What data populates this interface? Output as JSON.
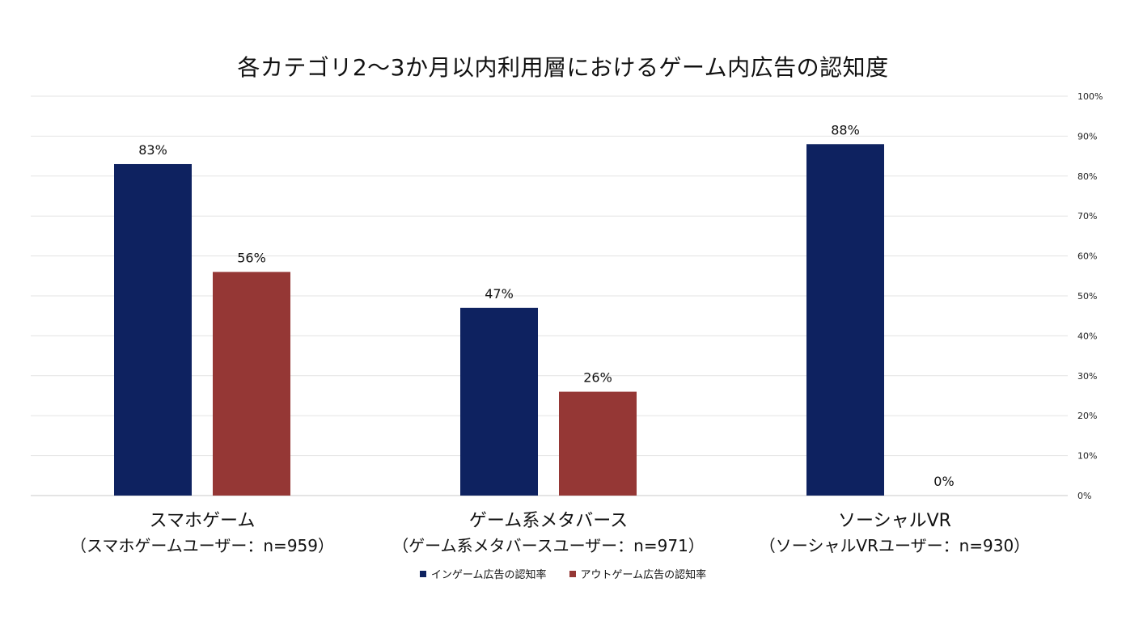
{
  "chart_data": {
    "type": "bar",
    "title": "各カテゴリ2〜3か月以内利用層におけるゲーム内広告の認知度",
    "categories": [
      {
        "name": "スマホゲーム",
        "sub": "（スマホゲームユーザー：n=959）"
      },
      {
        "name": "ゲーム系メタバース",
        "sub": "（ゲーム系メタバースユーザー：n=971）"
      },
      {
        "name": "ソーシャルVR",
        "sub": "（ソーシャルVRユーザー：n=930）"
      }
    ],
    "series": [
      {
        "name": "インゲーム広告の認知率",
        "color": "#0E2260",
        "values": [
          83,
          47,
          88
        ],
        "labels": [
          "83%",
          "47%",
          "88%"
        ]
      },
      {
        "name": "アウトゲーム広告の認知率",
        "color": "#953735",
        "values": [
          56,
          26,
          0
        ],
        "labels": [
          "56%",
          "26%",
          "0%"
        ]
      }
    ],
    "y_ticks": [
      "0%",
      "10%",
      "20%",
      "30%",
      "40%",
      "50%",
      "60%",
      "70%",
      "80%",
      "90%",
      "100%"
    ],
    "ylim": [
      0,
      100
    ],
    "y_axis_side": "right",
    "grid": true,
    "legend_position": "bottom"
  }
}
